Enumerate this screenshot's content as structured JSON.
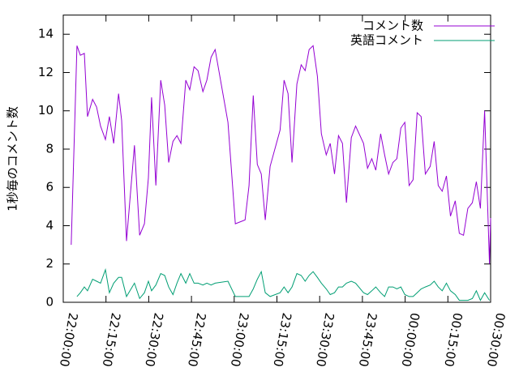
{
  "chart_data": {
    "type": "line",
    "y_label": "1秒毎のコメント数",
    "x": [
      "22:02:48",
      "22:04:48",
      "22:06:00",
      "22:07:24",
      "22:08:30",
      "22:10:18",
      "22:11:42",
      "22:13:06",
      "22:14:48",
      "22:16:12",
      "22:17:42",
      "22:19:24",
      "22:20:30",
      "22:22:12",
      "22:25:00",
      "22:26:48",
      "22:28:30",
      "22:29:54",
      "22:31:00",
      "22:32:30",
      "22:34:12",
      "22:35:36",
      "22:37:00",
      "22:38:30",
      "22:39:54",
      "22:41:18",
      "22:43:00",
      "22:44:24",
      "22:45:54",
      "22:47:18",
      "22:49:00",
      "22:50:24",
      "22:51:54",
      "22:53:18",
      "22:57:48",
      "23:00:24",
      "23:03:48",
      "23:05:12",
      "23:06:42",
      "23:08:06",
      "23:09:30",
      "23:10:54",
      "23:12:36",
      "23:16:06",
      "23:17:30",
      "23:18:54",
      "23:20:18",
      "23:22:00",
      "23:23:30",
      "23:24:54",
      "23:26:18",
      "23:27:42",
      "23:29:12",
      "23:30:36",
      "23:32:18",
      "23:33:42",
      "23:35:12",
      "23:36:36",
      "23:38:00",
      "23:39:24",
      "23:41:06",
      "23:42:36",
      "23:45:24",
      "23:46:48",
      "23:48:18",
      "23:49:42",
      "23:51:24",
      "23:52:48",
      "23:54:12",
      "23:55:42",
      "23:57:06",
      "23:58:30",
      "23:59:54",
      "00:01:24",
      "00:02:48",
      "00:04:12",
      "00:05:36",
      "00:07:06",
      "00:08:48",
      "00:10:12",
      "00:11:36",
      "00:13:00",
      "00:14:30",
      "00:15:54",
      "00:17:36",
      "00:19:00",
      "00:20:30",
      "00:22:00",
      "00:23:36",
      "00:25:00",
      "00:26:24",
      "00:27:54",
      "00:29:36",
      "00:30:00"
    ],
    "series": [
      {
        "name": "コメント数",
        "color": "#9400d3",
        "values": [
          3.0,
          13.4,
          12.9,
          13.0,
          9.7,
          10.6,
          10.2,
          9.2,
          8.5,
          9.7,
          8.3,
          10.9,
          9.5,
          3.2,
          8.2,
          3.5,
          4.1,
          6.5,
          10.7,
          6.1,
          11.6,
          10.3,
          7.3,
          8.4,
          8.7,
          8.3,
          11.6,
          11.1,
          12.3,
          12.1,
          11.0,
          11.6,
          12.8,
          13.2,
          9.4,
          4.1,
          4.3,
          6.1,
          10.8,
          7.2,
          6.7,
          4.3,
          7.1,
          9.0,
          11.6,
          10.9,
          7.3,
          11.4,
          12.4,
          12.1,
          13.2,
          13.4,
          11.8,
          8.8,
          7.7,
          8.3,
          6.7,
          8.7,
          8.3,
          5.2,
          8.6,
          9.2,
          8.3,
          7.0,
          7.5,
          6.9,
          8.8,
          7.7,
          6.7,
          7.3,
          7.5,
          9.1,
          9.4,
          6.1,
          6.4,
          9.9,
          9.7,
          6.7,
          7.1,
          8.4,
          6.1,
          5.8,
          6.6,
          4.5,
          5.3,
          3.6,
          3.5,
          4.9,
          5.2,
          6.3,
          4.9,
          10.0,
          2.0,
          4.4
        ]
      },
      {
        "name": "英語コメント",
        "color": "#009e73",
        "values": [
          null,
          0.3,
          0.5,
          0.8,
          0.6,
          1.2,
          1.1,
          1.0,
          1.7,
          0.5,
          1.0,
          1.3,
          1.3,
          0.3,
          1.0,
          0.2,
          0.5,
          1.1,
          0.6,
          0.9,
          1.5,
          1.4,
          0.8,
          0.4,
          1.0,
          1.5,
          1.0,
          1.5,
          1.0,
          1.0,
          0.9,
          1.0,
          0.9,
          1.0,
          1.1,
          0.3,
          0.3,
          0.3,
          0.7,
          1.2,
          1.6,
          0.5,
          0.3,
          0.5,
          0.8,
          0.5,
          0.8,
          1.5,
          1.4,
          1.1,
          1.4,
          1.6,
          1.3,
          1.0,
          0.7,
          0.4,
          0.5,
          0.8,
          0.8,
          1.0,
          1.1,
          1.0,
          0.5,
          0.4,
          0.6,
          0.8,
          0.5,
          0.3,
          0.8,
          0.8,
          0.7,
          0.8,
          0.4,
          0.3,
          0.3,
          0.5,
          0.7,
          0.8,
          0.9,
          1.1,
          0.8,
          0.6,
          1.0,
          0.6,
          0.4,
          0.1,
          0.1,
          0.1,
          0.2,
          0.6,
          0.1,
          0.5,
          0.1,
          null
        ]
      }
    ],
    "xlim": [
      "22:00:00",
      "00:30:00"
    ],
    "xticks": [
      "22:00:00",
      "22:15:00",
      "22:30:00",
      "22:45:00",
      "23:00:00",
      "23:15:00",
      "23:30:00",
      "23:45:00",
      "00:00:00",
      "00:15:00",
      "00:30:00"
    ],
    "ylim": [
      0,
      15
    ],
    "yticks": [
      0,
      2,
      4,
      6,
      8,
      10,
      12,
      14
    ],
    "grid": false,
    "legend": "top-right"
  }
}
